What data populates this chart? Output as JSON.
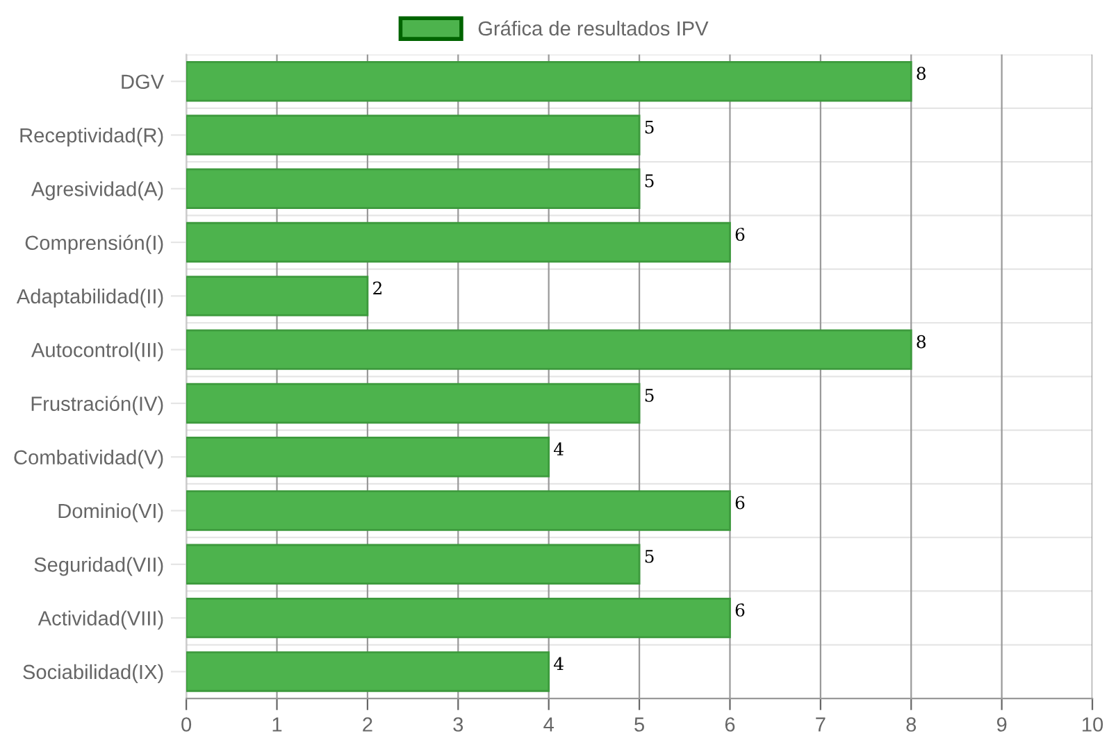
{
  "chart_data": {
    "type": "bar",
    "orientation": "horizontal",
    "categories": [
      "DGV",
      "Receptividad(R)",
      "Agresividad(A)",
      "Comprensión(I)",
      "Adaptabilidad(II)",
      "Autocontrol(III)",
      "Frustración(IV)",
      "Combatividad(V)",
      "Dominio(VI)",
      "Seguridad(VII)",
      "Actividad(VIII)",
      "Sociabilidad(IX)"
    ],
    "series": [
      {
        "name": "Gráfica de resultados IPV",
        "color": "#4db34d",
        "values": [
          8,
          5,
          5,
          6,
          2,
          8,
          5,
          4,
          6,
          5,
          6,
          4
        ]
      }
    ],
    "xlim": [
      0,
      10
    ],
    "xticks": [
      0,
      1,
      2,
      3,
      4,
      5,
      6,
      7,
      8,
      9,
      10
    ],
    "grid": true,
    "legend": "top",
    "data_labels": true
  }
}
